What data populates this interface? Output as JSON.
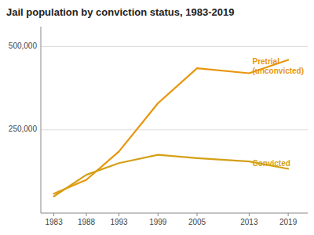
{
  "chart_data": {
    "type": "line",
    "title": "Jail population by conviction status, 1983-2019",
    "x": [
      1983,
      1988,
      1993,
      1999,
      2005,
      2013,
      2019
    ],
    "series": [
      {
        "color": "#e8960c",
        "values": [
          58000,
          100000,
          185000,
          330000,
          435000,
          420000,
          460000
        ]
      },
      {
        "color": "#d4a017",
        "values": [
          50000,
          115000,
          150000,
          175000,
          165000,
          155000,
          133000
        ]
      }
    ],
    "xlim": [
      1981,
      2022
    ],
    "xticks": [
      1983,
      1988,
      1993,
      1999,
      2005,
      2013,
      2019
    ],
    "ylim": [
      0,
      560000
    ],
    "yticks": [
      {
        "value": 250000,
        "label": "250,000"
      },
      {
        "value": 500000,
        "label": "500,000"
      }
    ],
    "grid": true,
    "annotations": [
      {
        "text": "Pretrial\n(unconvicted)",
        "x": 2013.5,
        "y": 440000,
        "color": "#e8960c"
      },
      {
        "text": "Convicted",
        "x": 2013.5,
        "y": 148000,
        "color": "#d4a017"
      }
    ]
  }
}
